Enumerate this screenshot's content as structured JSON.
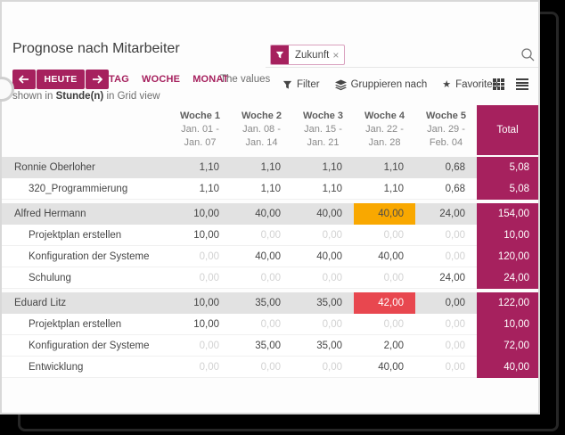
{
  "title": "Prognose nach Mitarbeiter",
  "searchbar": {
    "facet": {
      "label": "Zukunft",
      "remove": "×"
    }
  },
  "toolbar": {
    "today": "HEUTE",
    "ranges": [
      "TAG",
      "WOCHE",
      "MONAT"
    ],
    "note": {
      "line1": "The values",
      "line2_pre": "shown in ",
      "line2_bold": "Stunde(n)",
      "line2_post": " in Grid view"
    }
  },
  "menus": {
    "filter": "Filter",
    "groupby": "Gruppieren nach",
    "favorites": "Favoriten"
  },
  "icons": {
    "star": "★"
  },
  "grid": {
    "unit": "Stunde(n)",
    "columns": [
      {
        "title": "Woche 1",
        "sub1": "Jan. 01 -",
        "sub2": "Jan. 07"
      },
      {
        "title": "Woche 2",
        "sub1": "Jan. 08 -",
        "sub2": "Jan. 14"
      },
      {
        "title": "Woche 3",
        "sub1": "Jan. 15 -",
        "sub2": "Jan. 21"
      },
      {
        "title": "Woche 4",
        "sub1": "Jan. 22 -",
        "sub2": "Jan. 28"
      },
      {
        "title": "Woche 5",
        "sub1": "Jan. 29 -",
        "sub2": "Feb. 04"
      }
    ],
    "total_label": "Total",
    "groups": [
      {
        "name": "Ronnie Oberloher",
        "values": [
          "1,10",
          "1,10",
          "1,10",
          "1,10",
          "0,68"
        ],
        "total": "5,08",
        "rows": [
          {
            "name": "320_Programmierung",
            "values": [
              "1,10",
              "1,10",
              "1,10",
              "1,10",
              "0,68"
            ],
            "total": "5,08"
          }
        ]
      },
      {
        "name": "Alfred Hermann",
        "values": [
          "10,00",
          "40,00",
          "40,00",
          "40,00",
          "24,00"
        ],
        "total": "154,00",
        "highlight": {
          "col": 3,
          "type": "warning"
        },
        "rows": [
          {
            "name": "Projektplan erstellen",
            "values": [
              "10,00",
              "0,00",
              "0,00",
              "0,00",
              "0,00"
            ],
            "total": "10,00"
          },
          {
            "name": "Konfiguration der Systeme",
            "values": [
              "0,00",
              "40,00",
              "40,00",
              "40,00",
              "0,00"
            ],
            "total": "120,00"
          },
          {
            "name": "Schulung",
            "values": [
              "0,00",
              "0,00",
              "0,00",
              "0,00",
              "24,00"
            ],
            "total": "24,00"
          }
        ]
      },
      {
        "name": "Eduard Litz",
        "values": [
          "10,00",
          "35,00",
          "35,00",
          "42,00",
          "0,00"
        ],
        "total": "122,00",
        "highlight": {
          "col": 3,
          "type": "danger"
        },
        "rows": [
          {
            "name": "Projektplan erstellen",
            "values": [
              "10,00",
              "0,00",
              "0,00",
              "0,00",
              "0,00"
            ],
            "total": "10,00"
          },
          {
            "name": "Konfiguration der Systeme",
            "values": [
              "0,00",
              "35,00",
              "35,00",
              "2,00",
              "0,00"
            ],
            "total": "72,00"
          },
          {
            "name": "Entwicklung",
            "values": [
              "0,00",
              "0,00",
              "0,00",
              "40,00",
              "0,00"
            ],
            "total": "40,00"
          }
        ]
      }
    ]
  },
  "colors": {
    "accent": "#A6215E",
    "warning": "#F9A800",
    "danger": "#E8474F",
    "group_row_bg": "#E2E2E2",
    "muted_value": "#D2D2D2"
  }
}
